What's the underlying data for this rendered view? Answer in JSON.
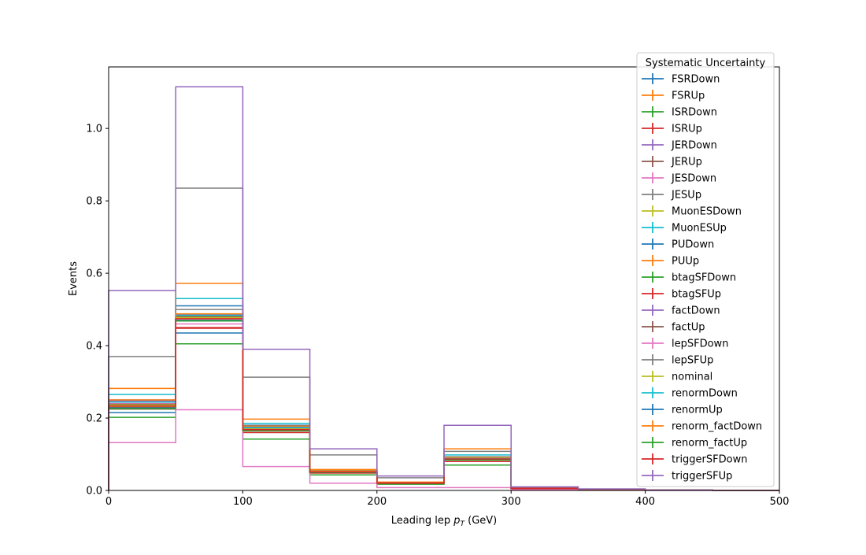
{
  "chart_data": {
    "type": "step",
    "xlabel_main": "Leading lep ",
    "xlabel_math": "p",
    "xlabel_sub": "T",
    "xlabel_unit": " (GeV)",
    "ylabel": "Events",
    "xlim": [
      0,
      500
    ],
    "ylim": [
      0,
      1.17
    ],
    "xticks": [
      0,
      100,
      200,
      300,
      400,
      500
    ],
    "xtick_labels": [
      "0",
      "100",
      "200",
      "300",
      "400",
      "500"
    ],
    "yticks": [
      0.0,
      0.2,
      0.4,
      0.6,
      0.8,
      1.0
    ],
    "ytick_labels": [
      "0.0",
      "0.2",
      "0.4",
      "0.6",
      "0.8",
      "1.0"
    ],
    "bin_edges": [
      0,
      50,
      100,
      150,
      200,
      250,
      300,
      350,
      400,
      450,
      500
    ],
    "grid": false,
    "legend": {
      "title": "Systematic Uncertainty",
      "placement": "upper-right, overflowing above axes"
    },
    "series": [
      {
        "name": "FSRDown",
        "color": "#1f77b4",
        "values": [
          0.215,
          0.435,
          0.165,
          0.05,
          0.02,
          0.08,
          0.005,
          0.003,
          0.001,
          0.0
        ]
      },
      {
        "name": "FSRUp",
        "color": "#ff7f0e",
        "values": [
          0.235,
          0.475,
          0.17,
          0.052,
          0.021,
          0.088,
          0.006,
          0.003,
          0.001,
          0.0
        ]
      },
      {
        "name": "ISRDown",
        "color": "#2ca02c",
        "values": [
          0.225,
          0.47,
          0.16,
          0.048,
          0.02,
          0.085,
          0.005,
          0.003,
          0.001,
          0.0
        ]
      },
      {
        "name": "ISRUp",
        "color": "#d62728",
        "values": [
          0.23,
          0.45,
          0.168,
          0.05,
          0.021,
          0.086,
          0.006,
          0.003,
          0.001,
          0.0
        ]
      },
      {
        "name": "JERDown",
        "color": "#9467bd",
        "values": [
          0.25,
          0.485,
          0.175,
          0.053,
          0.022,
          0.09,
          0.006,
          0.003,
          0.001,
          0.0
        ]
      },
      {
        "name": "JERUp",
        "color": "#8c564b",
        "values": [
          0.245,
          0.48,
          0.172,
          0.052,
          0.021,
          0.089,
          0.006,
          0.003,
          0.001,
          0.0
        ]
      },
      {
        "name": "JESDown",
        "color": "#e377c2",
        "values": [
          0.24,
          0.46,
          0.165,
          0.05,
          0.02,
          0.085,
          0.005,
          0.003,
          0.001,
          0.0
        ]
      },
      {
        "name": "JESUp",
        "color": "#7f7f7f",
        "values": [
          0.235,
          0.5,
          0.175,
          0.054,
          0.022,
          0.092,
          0.006,
          0.003,
          0.001,
          0.0
        ]
      },
      {
        "name": "MuonESDown",
        "color": "#bcbd22",
        "values": [
          0.232,
          0.47,
          0.168,
          0.051,
          0.021,
          0.087,
          0.006,
          0.003,
          0.001,
          0.0
        ]
      },
      {
        "name": "MuonESUp",
        "color": "#17becf",
        "values": [
          0.265,
          0.53,
          0.185,
          0.056,
          0.022,
          0.098,
          0.006,
          0.003,
          0.001,
          0.0
        ]
      },
      {
        "name": "PUDown",
        "color": "#1f77b4",
        "values": [
          0.235,
          0.51,
          0.18,
          0.054,
          0.021,
          0.093,
          0.006,
          0.003,
          0.001,
          0.0
        ]
      },
      {
        "name": "PUUp",
        "color": "#ff7f0e",
        "values": [
          0.282,
          0.572,
          0.197,
          0.058,
          0.023,
          0.115,
          0.007,
          0.003,
          0.001,
          0.0
        ]
      },
      {
        "name": "btagSFDown",
        "color": "#2ca02c",
        "values": [
          0.202,
          0.405,
          0.142,
          0.043,
          0.017,
          0.07,
          0.005,
          0.002,
          0.001,
          0.0
        ]
      },
      {
        "name": "btagSFUp",
        "color": "#d62728",
        "values": [
          0.225,
          0.448,
          0.16,
          0.048,
          0.019,
          0.08,
          0.005,
          0.003,
          0.001,
          0.0
        ]
      },
      {
        "name": "factDown",
        "color": "#9467bd",
        "values": [
          0.248,
          0.487,
          0.176,
          0.053,
          0.021,
          0.088,
          0.006,
          0.003,
          0.001,
          0.0
        ]
      },
      {
        "name": "factUp",
        "color": "#8c564b",
        "values": [
          0.238,
          0.483,
          0.17,
          0.051,
          0.02,
          0.086,
          0.006,
          0.003,
          0.001,
          0.0
        ]
      },
      {
        "name": "lepSFDown",
        "color": "#e377c2",
        "values": [
          0.132,
          0.223,
          0.066,
          0.02,
          0.008,
          0.008,
          0.002,
          0.001,
          0.0,
          0.0
        ]
      },
      {
        "name": "lepSFUp",
        "color": "#7f7f7f",
        "values": [
          0.37,
          0.835,
          0.313,
          0.098,
          0.035,
          0.108,
          0.008,
          0.004,
          0.001,
          0.0
        ]
      },
      {
        "name": "nominal",
        "color": "#bcbd22",
        "values": [
          0.236,
          0.478,
          0.17,
          0.052,
          0.021,
          0.088,
          0.006,
          0.003,
          0.001,
          0.0
        ]
      },
      {
        "name": "renormDown",
        "color": "#17becf",
        "values": [
          0.244,
          0.484,
          0.174,
          0.053,
          0.021,
          0.09,
          0.006,
          0.003,
          0.001,
          0.0
        ]
      },
      {
        "name": "renormUp",
        "color": "#1f77b4",
        "values": [
          0.228,
          0.47,
          0.166,
          0.05,
          0.02,
          0.085,
          0.006,
          0.003,
          0.001,
          0.0
        ]
      },
      {
        "name": "renorm_factDown",
        "color": "#ff7f0e",
        "values": [
          0.25,
          0.488,
          0.178,
          0.054,
          0.022,
          0.092,
          0.006,
          0.003,
          0.001,
          0.0
        ]
      },
      {
        "name": "renorm_factUp",
        "color": "#2ca02c",
        "values": [
          0.226,
          0.468,
          0.165,
          0.05,
          0.02,
          0.084,
          0.006,
          0.003,
          0.001,
          0.0
        ]
      },
      {
        "name": "triggerSFDown",
        "color": "#d62728",
        "values": [
          0.233,
          0.474,
          0.168,
          0.051,
          0.021,
          0.087,
          0.006,
          0.003,
          0.001,
          0.0
        ]
      },
      {
        "name": "triggerSFUp",
        "color": "#9467bd",
        "values": [
          0.552,
          1.115,
          0.39,
          0.115,
          0.04,
          0.18,
          0.01,
          0.004,
          0.001,
          0.0
        ]
      }
    ]
  }
}
